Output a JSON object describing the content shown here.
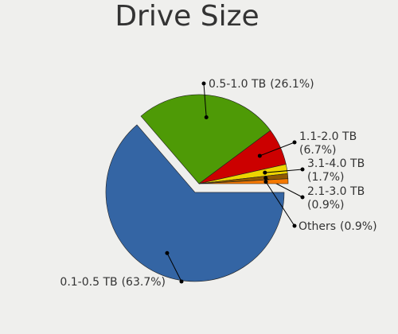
{
  "chart_data": {
    "type": "pie",
    "title": "Drive Size",
    "categories": [
      "0.1-0.5 TB",
      "0.5-1.0 TB",
      "1.1-2.0 TB",
      "3.1-4.0 TB",
      "2.1-3.0 TB",
      "Others"
    ],
    "values": [
      63.7,
      26.1,
      6.7,
      1.7,
      0.9,
      0.9
    ],
    "value_labels": [
      "(63.7%)",
      "(26.1%)",
      "(6.7%)",
      "(1.7%)",
      "(0.9%)",
      "(0.9%)"
    ],
    "colors": [
      "#3465a4",
      "#4e9a06",
      "#cc0000",
      "#edd400",
      "#8f5902",
      "#f57900"
    ],
    "exploded": [
      "0.1-0.5 TB"
    ]
  }
}
